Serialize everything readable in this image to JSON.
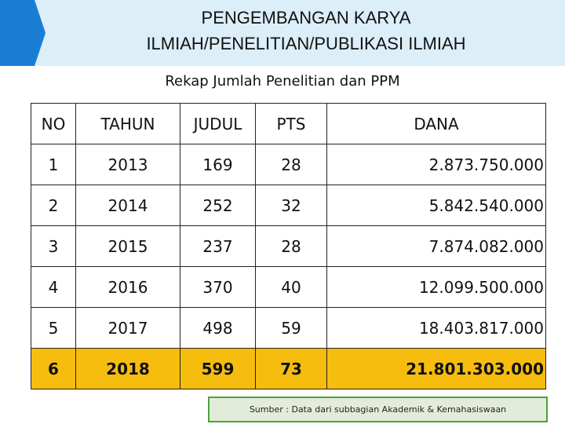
{
  "header": {
    "title_line1": "PENGEMBANGAN KARYA",
    "title_line2": "ILMIAH/PENELITIAN/PUBLIKASI ILMIAH"
  },
  "subtitle": "Rekap Jumlah Penelitian dan PPM",
  "table": {
    "columns": [
      "NO",
      "TAHUN",
      "JUDUL",
      "PTS",
      "DANA"
    ],
    "rows": [
      [
        "1",
        "2013",
        "169",
        "28",
        "2.873.750.000"
      ],
      [
        "2",
        "2014",
        "252",
        "32",
        "5.842.540.000"
      ],
      [
        "3",
        "2015",
        "237",
        "28",
        "7.874.082.000"
      ],
      [
        "4",
        "2016",
        "370",
        "40",
        "12.099.500.000"
      ],
      [
        "5",
        "2017",
        "498",
        "59",
        "18.403.817.000"
      ],
      [
        "6",
        "2018",
        "599",
        "73",
        "21.801.303.000"
      ]
    ],
    "highlight_color": "#f6bd0e"
  },
  "source_note": "Sumber : Data dari subbagian Akademik & Kemahasiswaan",
  "colors": {
    "header_bg": "#dceef8",
    "accent": "#1a7fd4",
    "source_border": "#4aa33d"
  }
}
